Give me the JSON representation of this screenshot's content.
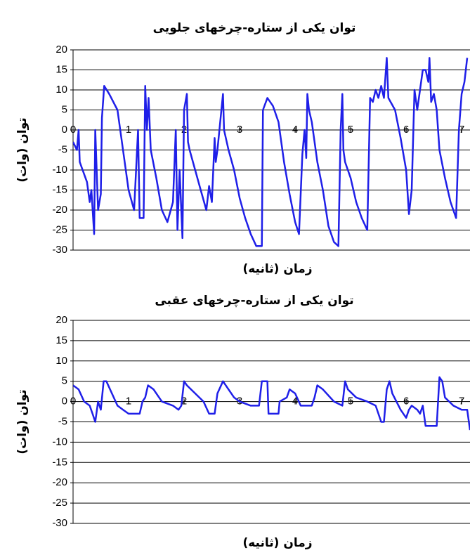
{
  "chart_data": [
    {
      "type": "line",
      "title": "توان یکی از ستاره-چرخهای جلویی",
      "x_label": "زمان (ثانیه)",
      "y_label": "توان (وات)",
      "color": "#1f1fe8",
      "grid": true,
      "xlim": [
        0,
        7.15
      ],
      "xticks": [
        0,
        1,
        2,
        3,
        4,
        5,
        6,
        7
      ],
      "ylim": [
        -30,
        20
      ],
      "yticks": [
        20,
        15,
        10,
        5,
        0,
        -5,
        -10,
        -15,
        -20,
        -25,
        -30
      ],
      "x": [
        0,
        0.07,
        0.1,
        0.12,
        0.25,
        0.3,
        0.33,
        0.38,
        0.4,
        0.45,
        0.5,
        0.52,
        0.56,
        0.65,
        0.8,
        0.9,
        1.0,
        1.1,
        1.17,
        1.2,
        1.27,
        1.3,
        1.33,
        1.36,
        1.4,
        1.5,
        1.6,
        1.7,
        1.8,
        1.85,
        1.88,
        1.92,
        1.97,
        2.0,
        2.05,
        2.07,
        2.1,
        2.2,
        2.3,
        2.4,
        2.45,
        2.5,
        2.55,
        2.57,
        2.6,
        2.7,
        2.72,
        2.8,
        2.9,
        3.0,
        3.1,
        3.2,
        3.3,
        3.4,
        3.42,
        3.5,
        3.6,
        3.7,
        3.8,
        3.9,
        4.0,
        4.07,
        4.13,
        4.17,
        4.2,
        4.22,
        4.25,
        4.3,
        4.4,
        4.5,
        4.6,
        4.7,
        4.78,
        4.82,
        4.85,
        4.87,
        4.9,
        5.0,
        5.1,
        5.2,
        5.3,
        5.35,
        5.4,
        5.45,
        5.5,
        5.55,
        5.6,
        5.65,
        5.68,
        5.8,
        5.9,
        6.0,
        6.05,
        6.1,
        6.15,
        6.2,
        6.3,
        6.35,
        6.4,
        6.42,
        6.45,
        6.5,
        6.55,
        6.6,
        6.7,
        6.8,
        6.9,
        6.95,
        7.0,
        7.05,
        7.1
      ],
      "values": [
        -3,
        -5,
        0,
        -8,
        -13,
        -18,
        -15,
        -26,
        0,
        -20,
        -16,
        3,
        11,
        9,
        5,
        -5,
        -15,
        -20,
        0,
        -22,
        -22,
        11,
        0,
        8,
        -5,
        -12,
        -20,
        -23,
        -18,
        0,
        -25,
        -10,
        -27,
        5,
        9,
        -3,
        -5,
        -10,
        -15,
        -20,
        -14,
        -18,
        -2,
        -8,
        -5,
        9,
        0,
        -5,
        -10,
        -17,
        -22,
        -26,
        -29,
        -29,
        5,
        8,
        6,
        2,
        -8,
        -16,
        -23,
        -26,
        -6,
        0,
        -7,
        9,
        5,
        2,
        -8,
        -15,
        -24,
        -28,
        -29,
        0,
        9,
        -5,
        -8,
        -12,
        -18,
        -22,
        -25,
        8,
        7,
        10,
        8,
        11,
        8,
        18,
        8,
        5,
        -2,
        -10,
        -21,
        -15,
        10,
        5,
        15,
        15,
        12,
        18,
        7,
        9,
        5,
        -5,
        -12,
        -18,
        -22,
        0,
        9,
        12,
        18
      ]
    },
    {
      "type": "line",
      "title": "توان یکی از ستاره-چرخهای عقبی",
      "x_label": "زمان (ثانیه)",
      "y_label": "توان (وات)",
      "color": "#1f1fe8",
      "grid": true,
      "xlim": [
        0,
        7.15
      ],
      "xticks": [
        0,
        1,
        2,
        3,
        4,
        5,
        6,
        7
      ],
      "ylim": [
        -30,
        20
      ],
      "yticks": [
        20,
        15,
        10,
        5,
        0,
        -5,
        -10,
        -15,
        -20,
        -25,
        -30
      ],
      "x": [
        0,
        0.1,
        0.2,
        0.3,
        0.35,
        0.4,
        0.45,
        0.5,
        0.55,
        0.6,
        0.7,
        0.8,
        0.9,
        1.0,
        1.1,
        1.2,
        1.25,
        1.3,
        1.35,
        1.45,
        1.6,
        1.8,
        1.9,
        1.95,
        2.0,
        2.05,
        2.2,
        2.35,
        2.45,
        2.55,
        2.6,
        2.7,
        2.8,
        2.9,
        3.0,
        3.2,
        3.35,
        3.4,
        3.5,
        3.52,
        3.7,
        3.72,
        3.85,
        3.9,
        4.0,
        4.1,
        4.3,
        4.35,
        4.4,
        4.5,
        4.7,
        4.85,
        4.9,
        4.95,
        5.1,
        5.3,
        5.45,
        5.55,
        5.6,
        5.65,
        5.7,
        5.75,
        5.9,
        6.0,
        6.05,
        6.1,
        6.2,
        6.25,
        6.3,
        6.35,
        6.55,
        6.6,
        6.65,
        6.7,
        6.85,
        7.0,
        7.1,
        7.15
      ],
      "values": [
        4,
        3,
        0,
        -1,
        -3,
        -5,
        0,
        -2,
        5,
        5,
        2,
        -1,
        -2,
        -3,
        -3,
        -3,
        0,
        1,
        4,
        3,
        0,
        -1,
        -2,
        -1,
        5,
        4,
        2,
        0,
        -3,
        -3,
        2,
        5,
        3,
        1,
        0,
        -1,
        -1,
        5,
        5,
        -3,
        -3,
        0,
        1,
        3,
        2,
        -1,
        -1,
        1,
        4,
        3,
        0,
        -1,
        5,
        3,
        1,
        0,
        -1,
        -5,
        -5,
        3,
        5,
        2,
        -2,
        -4,
        -2,
        -1,
        -2,
        -3,
        -1,
        -6,
        -6,
        6,
        5,
        1,
        -1,
        -2,
        -2,
        -7
      ]
    }
  ]
}
